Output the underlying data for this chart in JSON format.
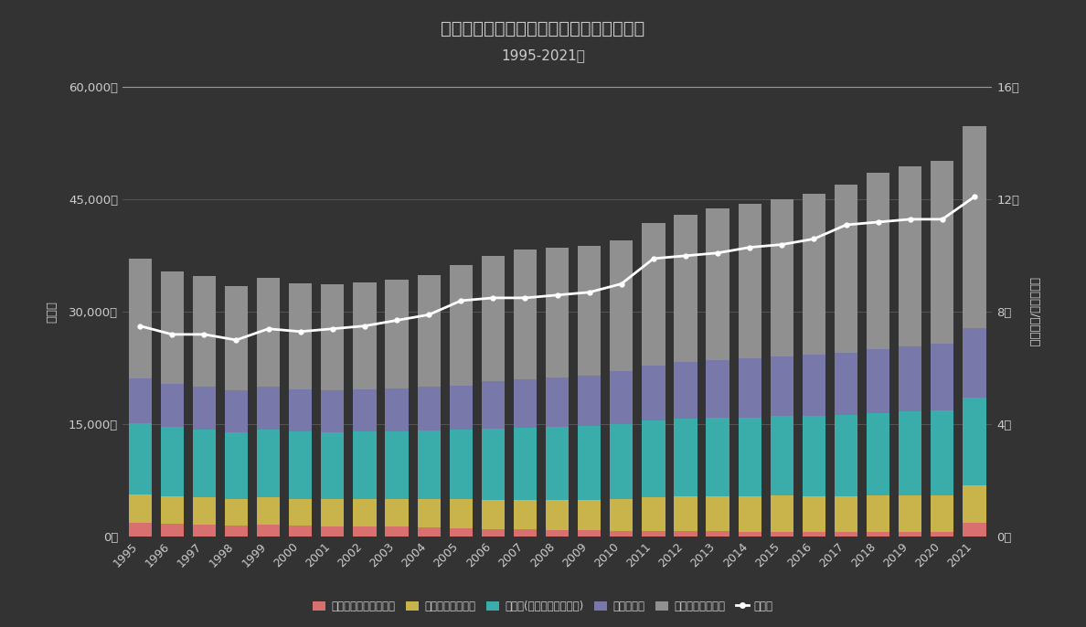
{
  "title": "消化器系の疾患が死因の死亡数の年次推移",
  "subtitle": "1995-2021年",
  "years": [
    1995,
    1996,
    1997,
    1998,
    1999,
    2000,
    2001,
    2002,
    2003,
    2004,
    2005,
    2006,
    2007,
    2008,
    2009,
    2010,
    2011,
    2012,
    2013,
    2014,
    2015,
    2016,
    2017,
    2018,
    2019,
    2020,
    2021
  ],
  "stomach_ulcer": [
    1800,
    1700,
    1600,
    1500,
    1600,
    1500,
    1400,
    1400,
    1300,
    1200,
    1100,
    1000,
    950,
    900,
    850,
    800,
    750,
    720,
    700,
    680,
    660,
    640,
    620,
    600,
    580,
    560,
    1800
  ],
  "hernia_ileus": [
    3800,
    3700,
    3600,
    3500,
    3600,
    3500,
    3600,
    3600,
    3700,
    3800,
    3900,
    3900,
    4000,
    4000,
    4100,
    4200,
    4500,
    4600,
    4700,
    4700,
    4800,
    4800,
    4800,
    4900,
    4900,
    4900,
    5000
  ],
  "liver_cirrhosis": [
    9500,
    9200,
    9100,
    8900,
    9100,
    9000,
    8900,
    9000,
    9100,
    9200,
    9300,
    9500,
    9600,
    9700,
    9800,
    10000,
    10200,
    10400,
    10500,
    10500,
    10600,
    10700,
    10800,
    11000,
    11200,
    11400,
    11700
  ],
  "other_liver": [
    6000,
    5800,
    5700,
    5600,
    5700,
    5600,
    5600,
    5700,
    5700,
    5800,
    5900,
    6400,
    6500,
    6600,
    6700,
    7100,
    7400,
    7600,
    7700,
    7900,
    8000,
    8100,
    8300,
    8500,
    8700,
    8900,
    9300
  ],
  "other_digestive": [
    16000,
    15000,
    14800,
    14000,
    14500,
    14200,
    14200,
    14200,
    14500,
    14900,
    16000,
    16700,
    17300,
    17400,
    17400,
    17400,
    19000,
    19700,
    20200,
    20600,
    21000,
    21500,
    22500,
    23600,
    24000,
    24400,
    27000
  ],
  "mortality_rate": [
    7.5,
    7.2,
    7.2,
    7.0,
    7.4,
    7.3,
    7.4,
    7.5,
    7.7,
    7.9,
    8.4,
    8.5,
    8.5,
    8.6,
    8.7,
    9.0,
    9.9,
    10.0,
    10.1,
    10.3,
    10.4,
    10.6,
    11.1,
    11.2,
    11.3,
    11.3,
    12.1
  ],
  "colors": {
    "stomach_ulcer": "#d97070",
    "hernia_ileus": "#c8b44a",
    "liver_cirrhosis": "#3aadaa",
    "other_liver": "#7878aa",
    "other_digestive": "#909090"
  },
  "bg_color": "#333333",
  "text_color": "#cccccc",
  "grid_color": "#555555",
  "line_color": "#ffffff",
  "ylim_left": [
    0,
    60000
  ],
  "ylim_right": [
    0,
    16
  ],
  "yticks_left": [
    0,
    15000,
    30000,
    45000,
    60000
  ],
  "yticks_right": [
    0,
    4,
    8,
    12,
    16
  ],
  "ylabel_left": "死亡数",
  "ylabel_right": "死亡率（人/十万人）",
  "legend_labels": [
    "胃潰瘍・十二指腸潰瘍",
    "ヘルニア・腸閉塞",
    "肝硬変(アルコール性除く)",
    "他の肝疾患",
    "他の消化器系疾患",
    "死亡率"
  ]
}
